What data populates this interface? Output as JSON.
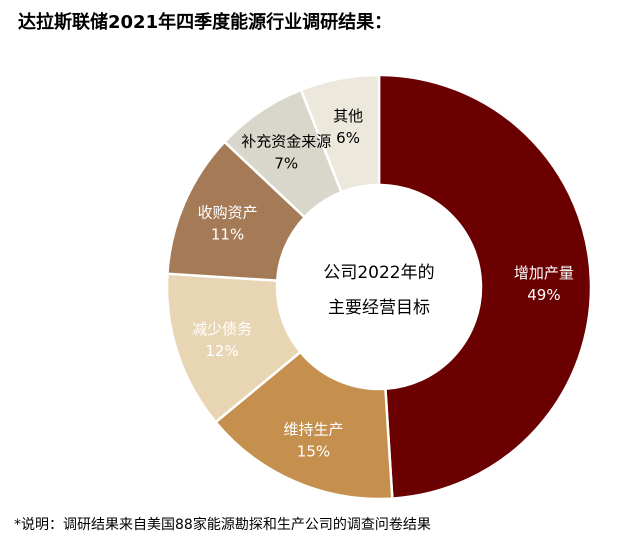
{
  "title": "达拉斯联储2021年四季度能源行业调研结果：",
  "note": "*说明：调研结果来自美国88家能源勘探和生产公司的调查问卷结果",
  "center_label": [
    "公司2022年的",
    "主要经营目标"
  ],
  "chart_data": {
    "type": "pie",
    "title": "达拉斯联储2021年四季度能源行业调研结果：",
    "categories": [
      "增加产量",
      "维持生产",
      "减少债务",
      "收购资产",
      "补充资金来源",
      "其他"
    ],
    "values": [
      49,
      15,
      12,
      11,
      7,
      6
    ],
    "value_labels": [
      "49%",
      "15%",
      "12%",
      "11%",
      "7%",
      "6%"
    ],
    "colors": [
      "#6b0000",
      "#c58f4d",
      "#e8d5b3",
      "#a57a56",
      "#d9d7cb",
      "#ede8dc"
    ],
    "label_colors": [
      "#ffffff",
      "#ffffff",
      "#ffffff",
      "#ffffff",
      "#000000",
      "#000000"
    ],
    "start_angle_deg": 0,
    "direction": "clockwise",
    "donut": true,
    "legend": "none"
  }
}
